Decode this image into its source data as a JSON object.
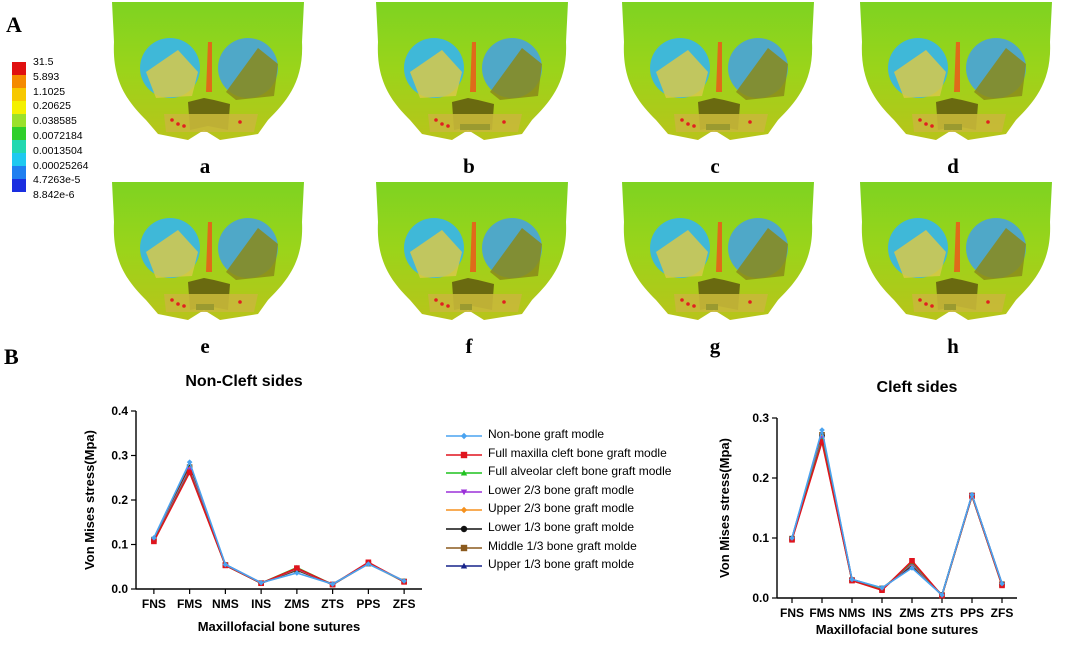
{
  "panels": {
    "a_label": "A",
    "b_label": "B"
  },
  "colorbar": {
    "values": [
      "31.5",
      "5.893",
      "1.1025",
      "0.20625",
      "0.038585",
      "0.0072184",
      "0.0013504",
      "0.00025264",
      "4.7263e-5",
      "8.842e-6"
    ],
    "colors": [
      "#e01010",
      "#f58a00",
      "#f7c800",
      "#f4f000",
      "#9be12a",
      "#2fcf2a",
      "#22d8b0",
      "#1ec9f0",
      "#1f7ff0",
      "#1a2ee0"
    ]
  },
  "models": [
    "a",
    "b",
    "c",
    "d",
    "e",
    "f",
    "g",
    "h"
  ],
  "legend": {
    "items": [
      {
        "label": "Non-bone graft modle",
        "color": "#4aa3f0",
        "marker": "diamond"
      },
      {
        "label": "Full maxilla cleft bone graft modle",
        "color": "#e0141e",
        "marker": "square"
      },
      {
        "label": "Full alveolar cleft bone graft modle",
        "color": "#1fc21f",
        "marker": "triangle"
      },
      {
        "label": "Lower 2/3 bone graft modle",
        "color": "#9b30d9",
        "marker": "triangle-down"
      },
      {
        "label": "Upper 2/3 bone graft modle",
        "color": "#f5911e",
        "marker": "diamond"
      },
      {
        "label": "Lower 1/3 bone graft molde",
        "color": "#111111",
        "marker": "circle"
      },
      {
        "label": "Middle 1/3 bone graft molde",
        "color": "#8b5a1e",
        "marker": "square"
      },
      {
        "label": "Upper 1/3 bone graft molde",
        "color": "#17238a",
        "marker": "triangle"
      }
    ]
  },
  "chart_data": [
    {
      "type": "line",
      "title": "Non-Cleft sides",
      "xlabel": "Maxillofacial bone sutures",
      "ylabel": "Von Mises stress(Mpa)",
      "categories": [
        "FNS",
        "FMS",
        "NMS",
        "INS",
        "ZMS",
        "ZTS",
        "PPS",
        "ZFS"
      ],
      "ylim": [
        0,
        0.4
      ],
      "yticks": [
        "0.0",
        "0.1",
        "0.2",
        "0.3",
        "0.4"
      ],
      "series": [
        {
          "name": "Non-bone graft modle",
          "values": [
            0.115,
            0.285,
            0.055,
            0.014,
            0.036,
            0.011,
            0.056,
            0.018
          ]
        },
        {
          "name": "Full maxilla cleft bone graft modle",
          "values": [
            0.107,
            0.262,
            0.053,
            0.013,
            0.047,
            0.01,
            0.06,
            0.016
          ]
        },
        {
          "name": "Full alveolar cleft bone graft modle",
          "values": [
            0.108,
            0.264,
            0.053,
            0.013,
            0.048,
            0.01,
            0.059,
            0.016
          ]
        },
        {
          "name": "Lower 2/3 bone graft modle",
          "values": [
            0.109,
            0.268,
            0.054,
            0.013,
            0.046,
            0.01,
            0.058,
            0.017
          ]
        },
        {
          "name": "Upper 2/3 bone graft modle",
          "values": [
            0.11,
            0.27,
            0.054,
            0.013,
            0.045,
            0.01,
            0.058,
            0.017
          ]
        },
        {
          "name": "Lower 1/3 bone graft molde",
          "values": [
            0.11,
            0.272,
            0.054,
            0.013,
            0.044,
            0.01,
            0.058,
            0.017
          ]
        },
        {
          "name": "Middle 1/3 bone graft molde",
          "values": [
            0.111,
            0.274,
            0.054,
            0.013,
            0.043,
            0.01,
            0.057,
            0.017
          ]
        },
        {
          "name": "Upper 1/3 bone graft molde",
          "values": [
            0.112,
            0.276,
            0.055,
            0.014,
            0.042,
            0.011,
            0.057,
            0.018
          ]
        }
      ]
    },
    {
      "type": "line",
      "title": "Cleft sides",
      "xlabel": "Maxillofacial bone sutures",
      "ylabel": "Von Mises stress(Mpa)",
      "categories": [
        "FNS",
        "FMS",
        "NMS",
        "INS",
        "ZMS",
        "ZTS",
        "PPS",
        "ZFS"
      ],
      "ylim": [
        0,
        0.3
      ],
      "yticks": [
        "0.0",
        "0.1",
        "0.2",
        "0.3"
      ],
      "series": [
        {
          "name": "Non-bone graft modle",
          "values": [
            0.1,
            0.28,
            0.031,
            0.017,
            0.05,
            0.005,
            0.172,
            0.024
          ]
        },
        {
          "name": "Full maxilla cleft bone graft modle",
          "values": [
            0.097,
            0.26,
            0.029,
            0.013,
            0.062,
            0.004,
            0.17,
            0.021
          ]
        },
        {
          "name": "Full alveolar cleft bone graft modle",
          "values": [
            0.098,
            0.263,
            0.029,
            0.014,
            0.06,
            0.004,
            0.17,
            0.021
          ]
        },
        {
          "name": "Lower 2/3 bone graft modle",
          "values": [
            0.098,
            0.266,
            0.03,
            0.014,
            0.058,
            0.004,
            0.171,
            0.022
          ]
        },
        {
          "name": "Upper 2/3 bone graft modle",
          "values": [
            0.099,
            0.268,
            0.03,
            0.015,
            0.057,
            0.004,
            0.171,
            0.022
          ]
        },
        {
          "name": "Lower 1/3 bone graft molde",
          "values": [
            0.099,
            0.27,
            0.03,
            0.015,
            0.056,
            0.005,
            0.171,
            0.023
          ]
        },
        {
          "name": "Middle 1/3 bone graft molde",
          "values": [
            0.099,
            0.272,
            0.03,
            0.016,
            0.055,
            0.005,
            0.171,
            0.023
          ]
        },
        {
          "name": "Upper 1/3 bone graft molde",
          "values": [
            0.1,
            0.275,
            0.031,
            0.016,
            0.053,
            0.005,
            0.172,
            0.024
          ]
        }
      ]
    }
  ]
}
